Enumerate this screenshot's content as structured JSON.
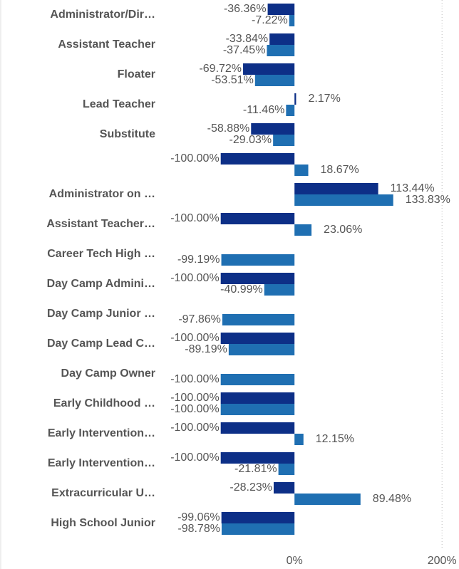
{
  "chart_data": {
    "type": "hbar",
    "categories": [
      "Administrator/Dir…",
      "Assistant Teacher",
      "Floater",
      "Lead Teacher",
      "Substitute",
      null,
      "Administrator on …",
      "Assistant Teacher…",
      "Career Tech High …",
      "Day Camp Admini…",
      "Day Camp Junior …",
      "Day Camp Lead C…",
      "Day Camp Owner",
      "Early Childhood …",
      "Early Intervention…",
      "Early Intervention…",
      "Extracurricular U…",
      "High School Junior"
    ],
    "series": [
      {
        "color": "#0d2f87",
        "values": [
          -36.36,
          -33.84,
          -69.72,
          2.17,
          -58.88,
          -100,
          113.44,
          -100,
          null,
          -100,
          null,
          -100,
          null,
          -100,
          -100,
          -100,
          -28.23,
          -99.06
        ],
        "value_labels": [
          "-36.36%",
          "-33.84%",
          "-69.72%",
          "2.17%",
          "-58.88%",
          "-100.00%",
          "113.44%",
          "-100.00%",
          null,
          "-100.00%",
          null,
          "-100.00%",
          null,
          "-100.00%",
          "-100.00%",
          "-100.00%",
          "-28.23%",
          "-99.06%"
        ]
      },
      {
        "color": "#1f6fb2",
        "values": [
          -7.22,
          -37.45,
          -53.51,
          -11.46,
          -29.03,
          18.67,
          133.83,
          23.06,
          -99.19,
          -40.99,
          -97.86,
          -89.19,
          -100,
          -100,
          12.15,
          -21.81,
          89.48,
          -98.78
        ],
        "value_labels": [
          "-7.22%",
          "-37.45%",
          "-53.51%",
          "-11.46%",
          "-29.03%",
          "18.67%",
          "133.83%",
          "23.06%",
          "-99.19%",
          "-40.99%",
          "-97.86%",
          "-89.19%",
          "-100.00%",
          "-100.00%",
          "12.15%",
          "-21.81%",
          "89.48%",
          "-98.78%"
        ]
      }
    ],
    "xlim": [
      -177,
      223
    ],
    "xticks": [
      {
        "value": 0,
        "label": "0%"
      },
      {
        "value": 200,
        "label": "200%"
      }
    ]
  }
}
